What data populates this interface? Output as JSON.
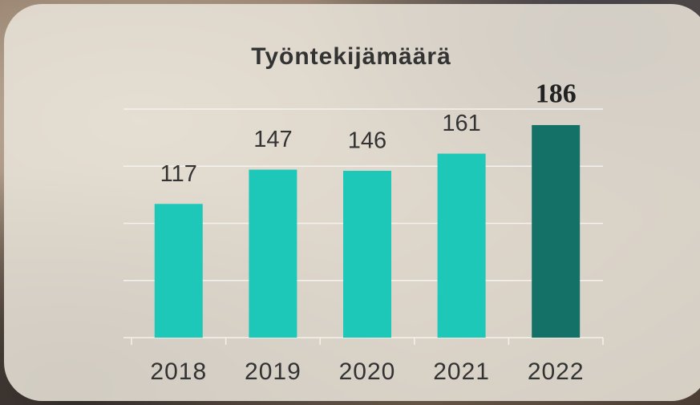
{
  "chart_data": {
    "type": "bar",
    "title": "Työntekijämäärä",
    "categories": [
      "2018",
      "2019",
      "2020",
      "2021",
      "2022"
    ],
    "values": [
      117,
      147,
      146,
      161,
      186
    ],
    "colors": [
      "#1ec8b8",
      "#1ec8b8",
      "#1ec8b8",
      "#1ec8b8",
      "#137168"
    ],
    "highlight": 4,
    "ylim": [
      0,
      200
    ],
    "yticks": [
      0,
      50,
      100,
      150,
      200
    ],
    "grid": true
  }
}
